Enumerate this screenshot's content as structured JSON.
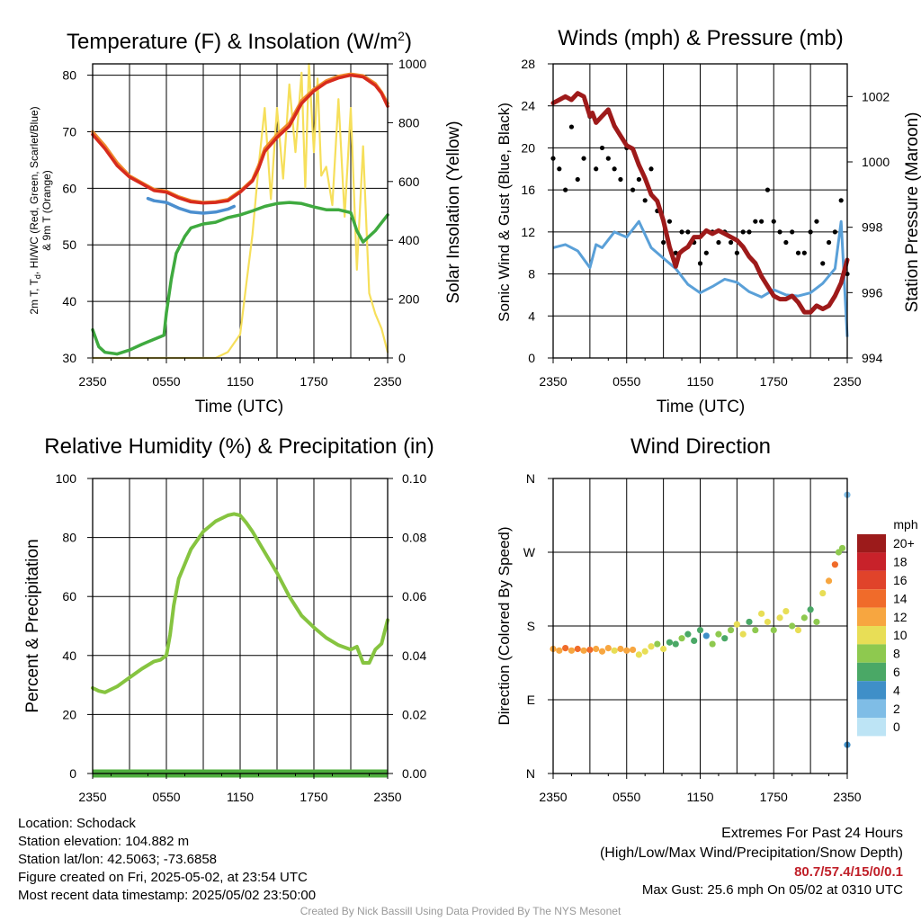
{
  "panels": {
    "temp": {
      "title": "Temperature (F) & Insolation (W/m",
      "title_sup": "2",
      "title_end": ")",
      "ylabel_left_1": "2m T, T",
      "ylabel_left_sub": "d",
      "ylabel_left_2": ", HI/WC (Red, Green, Scarlet/Blue)",
      "ylabel_left_3": "& 9m T (Orange)",
      "ylabel_right": "Solar Insolation (Yellow)",
      "xlabel": "Time (UTC)"
    },
    "winds": {
      "title": "Winds (mph) & Pressure (mb)",
      "ylabel_left": "Sonic Wind & Gust (Blue, Black)",
      "ylabel_right": "Station Pressure (Maroon)",
      "xlabel": "Time (UTC)"
    },
    "rh": {
      "title": "Relative Humidity (%) & Precipitation (in)",
      "ylabel_left": "Percent & Precipitation"
    },
    "wdir": {
      "title": "Wind Direction",
      "ylabel_left": "Direction (Colored By Speed)",
      "legend_title": "mph"
    }
  },
  "chart_data": [
    {
      "id": "temp",
      "type": "line",
      "x_ticks": [
        "2350",
        "0550",
        "1150",
        "1750",
        "2350"
      ],
      "x_range_hours": [
        0,
        24
      ],
      "y_left": {
        "range": [
          30,
          82
        ],
        "ticks": [
          30,
          40,
          50,
          60,
          70,
          80
        ]
      },
      "y_right": {
        "range": [
          0,
          1000
        ],
        "ticks": [
          0,
          200,
          400,
          600,
          800,
          1000
        ]
      },
      "series": [
        {
          "color": "#f08a2c",
          "x": [
            0,
            1,
            2,
            3,
            4,
            5,
            6,
            7,
            8,
            9,
            10,
            11,
            12,
            13,
            13.5,
            14,
            15,
            16,
            16.5,
            17,
            18,
            19,
            20,
            21,
            22,
            23,
            23.5,
            24
          ],
          "y": [
            70,
            67.5,
            64.5,
            62.2,
            61,
            59.8,
            59.5,
            58.5,
            57.8,
            57.5,
            57.6,
            58,
            59.5,
            61.5,
            64,
            67,
            69.5,
            71.5,
            73.5,
            75.5,
            77.5,
            79,
            79.8,
            80.2,
            79.9,
            78.5,
            77,
            75
          ]
        },
        {
          "color": "#d72b1d",
          "x": [
            0,
            1,
            2,
            3,
            4,
            5,
            6,
            7,
            8,
            9,
            10,
            11,
            12,
            13,
            13.5,
            14,
            15,
            16,
            16.5,
            17,
            18,
            19,
            20,
            21,
            22,
            23,
            23.5,
            24
          ],
          "y": [
            69.5,
            67,
            64,
            62,
            60.8,
            59.6,
            59.3,
            58.3,
            57.6,
            57.4,
            57.5,
            57.8,
            59.3,
            61.3,
            63.5,
            66.5,
            69,
            71,
            73,
            75,
            77.2,
            78.7,
            79.5,
            80,
            79.7,
            78.2,
            76.8,
            74.5
          ]
        },
        {
          "color": "#4b8fcf",
          "x": [
            4.5,
            5,
            6,
            7,
            8,
            9,
            10,
            11,
            11.5
          ],
          "y": [
            58.2,
            57.8,
            57.5,
            56.5,
            55.8,
            55.6,
            55.8,
            56.3,
            56.8
          ]
        },
        {
          "color": "#3faa3f",
          "x": [
            0,
            0.5,
            1,
            2,
            3,
            4,
            5,
            5.8,
            6,
            6.4,
            6.8,
            7.5,
            8,
            9,
            10,
            11,
            12,
            13,
            14,
            15,
            16,
            17,
            18,
            19,
            20,
            21,
            21.5,
            22,
            23,
            24
          ],
          "y": [
            35,
            32,
            31,
            30.7,
            31.4,
            32.4,
            33.3,
            34,
            38,
            44,
            48.5,
            51.5,
            53,
            53.7,
            54,
            54.8,
            55.3,
            56,
            56.8,
            57.3,
            57.5,
            57.3,
            56.7,
            56.2,
            56.2,
            55.7,
            52.5,
            50.5,
            52.5,
            55.3
          ]
        },
        {
          "color": "#f6df5b",
          "axis": "right",
          "x": [
            0,
            5,
            10,
            11,
            12,
            12.5,
            13,
            13.5,
            14,
            14.5,
            15,
            15.5,
            16,
            16.5,
            17,
            17.3,
            17.6,
            18,
            18.3,
            18.6,
            19,
            19.5,
            20,
            20.5,
            21,
            21.5,
            22,
            22.5,
            23,
            23.5,
            24
          ],
          "y": [
            0,
            0,
            0,
            20,
            80,
            250,
            420,
            650,
            850,
            540,
            850,
            610,
            930,
            700,
            970,
            580,
            1000,
            700,
            950,
            620,
            650,
            520,
            880,
            480,
            850,
            300,
            720,
            220,
            150,
            100,
            20
          ]
        }
      ]
    },
    {
      "id": "winds",
      "type": "line",
      "x_ticks": [
        "2350",
        "0550",
        "1150",
        "1750",
        "2350"
      ],
      "x_range_hours": [
        0,
        24
      ],
      "y_left": {
        "range": [
          0,
          28
        ],
        "ticks": [
          0,
          4,
          8,
          12,
          16,
          20,
          24,
          28
        ]
      },
      "y_right": {
        "range": [
          994,
          1003
        ],
        "ticks": [
          994,
          996,
          998,
          1000,
          1002
        ]
      },
      "series": [
        {
          "color": "#5aa0d8",
          "x": [
            0,
            1,
            2,
            3,
            3.5,
            4,
            5,
            6,
            7,
            8,
            9,
            10,
            11,
            12,
            13,
            14,
            15,
            16,
            17,
            18,
            19,
            20,
            21,
            22,
            23,
            23.5,
            24
          ],
          "y": [
            10.5,
            10.8,
            10.2,
            8.6,
            10.8,
            10.5,
            12,
            11.5,
            13,
            10.5,
            9.5,
            8.5,
            7,
            6.2,
            6.8,
            7.5,
            7.2,
            6.3,
            5.8,
            6.5,
            6,
            5.9,
            6.2,
            7.1,
            8.5,
            13,
            2
          ]
        },
        {
          "color": "#000000",
          "mode": "markers",
          "x": [
            0,
            0.5,
            1,
            1.5,
            2,
            2.5,
            3,
            3.5,
            4,
            4.5,
            5,
            5.5,
            6,
            6.5,
            7,
            7.5,
            8,
            8.5,
            9,
            9.5,
            10,
            10.5,
            11,
            11.5,
            12,
            12.5,
            13,
            13.5,
            14,
            14.5,
            15,
            15.5,
            16,
            16.5,
            17,
            17.5,
            18,
            18.5,
            19,
            19.5,
            20,
            20.5,
            21,
            21.5,
            22,
            22.5,
            23,
            23.5,
            24
          ],
          "y": [
            19,
            18,
            16,
            22,
            17,
            19,
            23,
            18,
            20,
            19,
            18,
            17,
            20,
            16,
            17,
            15,
            18,
            14,
            11,
            13,
            10,
            12,
            12,
            11,
            9,
            10,
            12,
            11,
            12,
            11,
            10,
            12,
            12,
            13,
            13,
            16,
            13,
            12,
            11,
            12,
            10,
            10,
            12,
            13,
            9,
            11,
            12,
            15,
            8
          ]
        },
        {
          "color": "#9e1a1a",
          "axis": "right",
          "x": [
            0,
            0.5,
            1,
            1.5,
            2,
            2.5,
            3,
            3.2,
            3.5,
            4,
            4.5,
            5,
            5.5,
            6,
            6.5,
            7,
            7.5,
            8,
            8.5,
            9,
            9.5,
            10,
            10.3,
            10.6,
            11,
            11.5,
            12,
            12.5,
            13,
            13.5,
            14,
            14.5,
            15,
            15.5,
            16,
            16.5,
            17,
            17.5,
            18,
            18.5,
            19,
            19.5,
            20,
            20.5,
            21,
            21.5,
            22,
            22.5,
            23,
            23.5,
            24
          ],
          "y": [
            1001.8,
            1001.9,
            1002,
            1001.9,
            1002.1,
            1002,
            1001.4,
            1001.5,
            1001.2,
            1001.4,
            1001.6,
            1001.1,
            1000.8,
            1000.5,
            1000.4,
            999.9,
            999.5,
            999,
            998.8,
            998.2,
            997.4,
            996.8,
            997.2,
            997.3,
            997.4,
            997.7,
            997.7,
            997.9,
            997.8,
            997.9,
            997.8,
            997.7,
            997.6,
            997.4,
            997.1,
            996.9,
            996.5,
            996.2,
            995.9,
            995.8,
            995.8,
            995.9,
            995.7,
            995.4,
            995.4,
            995.6,
            995.5,
            995.6,
            995.9,
            996.3,
            997
          ]
        }
      ]
    },
    {
      "id": "rh",
      "type": "line",
      "x_ticks": [
        "2350",
        "0550",
        "1150",
        "1750",
        "2350"
      ],
      "x_range_hours": [
        0,
        24
      ],
      "y_left": {
        "range": [
          0,
          100
        ],
        "ticks": [
          0,
          20,
          40,
          60,
          80,
          100
        ]
      },
      "y_right": {
        "range": [
          0,
          0.1
        ],
        "ticks": [
          "0.00",
          "0.02",
          "0.04",
          "0.06",
          "0.08",
          "0.10"
        ]
      },
      "series": [
        {
          "color": "#86c440",
          "x": [
            0,
            0.5,
            1,
            2,
            3,
            4,
            5,
            5.5,
            6,
            6.3,
            6.6,
            7,
            7.5,
            8,
            9,
            10,
            11,
            11.5,
            12,
            12.5,
            13,
            14,
            15,
            16,
            17,
            18,
            19,
            20,
            21,
            21.5,
            22,
            22.5,
            23,
            23.5,
            24
          ],
          "y": [
            29,
            28,
            27.5,
            29.5,
            32.5,
            35.5,
            38,
            38.5,
            40,
            47,
            57,
            66,
            71,
            76,
            82,
            85.5,
            87.5,
            88,
            87.5,
            85,
            82,
            75,
            68,
            60,
            53.5,
            49.5,
            46,
            43.5,
            42,
            43,
            37.5,
            37.5,
            42,
            44,
            52
          ]
        },
        {
          "color": "#3f8a2c",
          "x": [
            0,
            24
          ],
          "y": [
            0,
            0
          ]
        }
      ]
    },
    {
      "id": "wdir",
      "type": "scatter",
      "x_ticks": [
        "2350",
        "0550",
        "1150",
        "1750",
        "2350"
      ],
      "x_range_hours": [
        0,
        24
      ],
      "y_ticks": [
        "N",
        "E",
        "S",
        "W",
        "N"
      ],
      "y_range_deg": [
        0,
        360
      ],
      "colorbar": {
        "labels": [
          "20+",
          "18",
          "16",
          "14",
          "12",
          "10",
          "8",
          "6",
          "4",
          "2",
          "0"
        ],
        "colors": [
          "#9c1b1b",
          "#c8222a",
          "#e0432a",
          "#f06b2a",
          "#f7a640",
          "#e8de56",
          "#8ec94f",
          "#4aa866",
          "#3f8fc8",
          "#7fbde6",
          "#bde4f5"
        ]
      },
      "x": [
        0,
        0.5,
        1,
        1.5,
        2,
        2.5,
        3,
        3.5,
        4,
        4.5,
        5,
        5.5,
        6,
        6.5,
        7,
        7.5,
        8,
        8.5,
        9,
        9.5,
        10,
        10.5,
        11,
        11.5,
        12,
        12.5,
        13,
        13.5,
        14,
        14.5,
        15,
        15.5,
        16,
        16.5,
        17,
        17.5,
        18,
        18.5,
        19,
        19.5,
        20,
        20.5,
        21,
        21.5,
        22,
        22.5,
        23,
        23.3,
        23.6,
        24,
        24
      ],
      "y": [
        152,
        150,
        153,
        150,
        152,
        150,
        151,
        152,
        149,
        153,
        150,
        152,
        150,
        151,
        145,
        149,
        155,
        158,
        152,
        160,
        158,
        165,
        170,
        162,
        175,
        168,
        158,
        170,
        165,
        175,
        182,
        170,
        185,
        175,
        195,
        185,
        175,
        190,
        198,
        180,
        175,
        190,
        200,
        185,
        220,
        235,
        255,
        270,
        275,
        340,
        35
      ],
      "speed": [
        12,
        11,
        13,
        12,
        14,
        12,
        13,
        12,
        11,
        12,
        10,
        12,
        11,
        12,
        10,
        10,
        9,
        8,
        9,
        6,
        5,
        7,
        6,
        5,
        6,
        4,
        8,
        7,
        5,
        8,
        10,
        9,
        6,
        8,
        9,
        10,
        8,
        9,
        10,
        8,
        9,
        8,
        6,
        8,
        10,
        12,
        14,
        8,
        7,
        2,
        3
      ]
    }
  ],
  "info": {
    "location": "Location: Schodack",
    "elevation": "Station elevation: 104.882 m",
    "latlon": "Station lat/lon: 42.5063; -73.6858",
    "created": "Figure created on Fri, 2025-05-02, at 23:54 UTC",
    "recent": "Most recent data timestamp: 2025/05/02 23:50:00"
  },
  "extremes": {
    "title": "Extremes For Past 24 Hours",
    "subtitle": "(High/Low/Max Wind/Precipitation/Snow Depth)",
    "values": "80.7/57.4/15/0/0.1",
    "gust": "Max Gust: 25.6 mph On 05/02 at 0310 UTC"
  },
  "credit": "Created By Nick Bassill Using Data Provided By The NYS Mesonet"
}
